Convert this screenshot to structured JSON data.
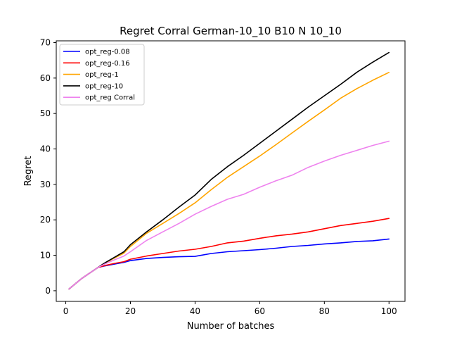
{
  "chart_data": {
    "type": "line",
    "title": "Regret Corral German-10_10 B10 N 10_10",
    "xlabel": "Number of batches",
    "ylabel": "Regret",
    "xlim": [
      -2.95,
      104.95
    ],
    "ylim": [
      -3.0,
      70.5
    ],
    "xticks": [
      0,
      20,
      40,
      60,
      80,
      100
    ],
    "yticks": [
      0,
      10,
      20,
      30,
      40,
      50,
      60,
      70
    ],
    "grid": false,
    "legend_position": "top-left",
    "x": [
      1,
      5,
      10,
      12,
      15,
      18,
      20,
      25,
      30,
      35,
      40,
      45,
      50,
      55,
      60,
      65,
      70,
      75,
      80,
      85,
      90,
      95,
      100
    ],
    "series": [
      {
        "name": "opt_reg-0.08",
        "color": "#0000ff",
        "values": [
          0.5,
          3.5,
          6.6,
          7.0,
          7.5,
          8.0,
          8.5,
          9.1,
          9.4,
          9.6,
          9.7,
          10.5,
          11.0,
          11.3,
          11.6,
          12.0,
          12.5,
          12.8,
          13.2,
          13.5,
          13.9,
          14.1,
          14.6
        ]
      },
      {
        "name": "opt_reg-0.16",
        "color": "#ff0000",
        "values": [
          0.5,
          3.5,
          6.6,
          7.1,
          7.7,
          8.2,
          8.9,
          9.8,
          10.5,
          11.2,
          11.7,
          12.5,
          13.5,
          14.0,
          14.8,
          15.5,
          16.0,
          16.6,
          17.5,
          18.4,
          19.0,
          19.6,
          20.4
        ]
      },
      {
        "name": "opt_reg-1",
        "color": "#ffa500",
        "values": [
          0.5,
          3.5,
          6.6,
          7.7,
          9.2,
          10.6,
          12.5,
          16.2,
          19.0,
          21.8,
          24.8,
          28.5,
          32.0,
          35.0,
          38.0,
          41.2,
          44.5,
          47.8,
          51.0,
          54.3,
          57.0,
          59.4,
          61.6
        ]
      },
      {
        "name": "opt_reg-10",
        "color": "#000000",
        "values": [
          0.5,
          3.5,
          6.6,
          7.8,
          9.4,
          11.0,
          13.0,
          16.6,
          20.0,
          23.6,
          27.0,
          31.4,
          35.0,
          38.2,
          41.6,
          45.0,
          48.4,
          51.8,
          55.0,
          58.2,
          61.6,
          64.5,
          67.2
        ]
      },
      {
        "name": "opt_reg Corral",
        "color": "#ee82ee",
        "values": [
          0.5,
          3.5,
          6.6,
          7.5,
          8.7,
          9.8,
          11.0,
          14.2,
          16.6,
          19.0,
          21.6,
          23.8,
          25.8,
          27.2,
          29.2,
          31.0,
          32.6,
          34.8,
          36.6,
          38.2,
          39.6,
          41.0,
          42.2
        ]
      }
    ]
  }
}
